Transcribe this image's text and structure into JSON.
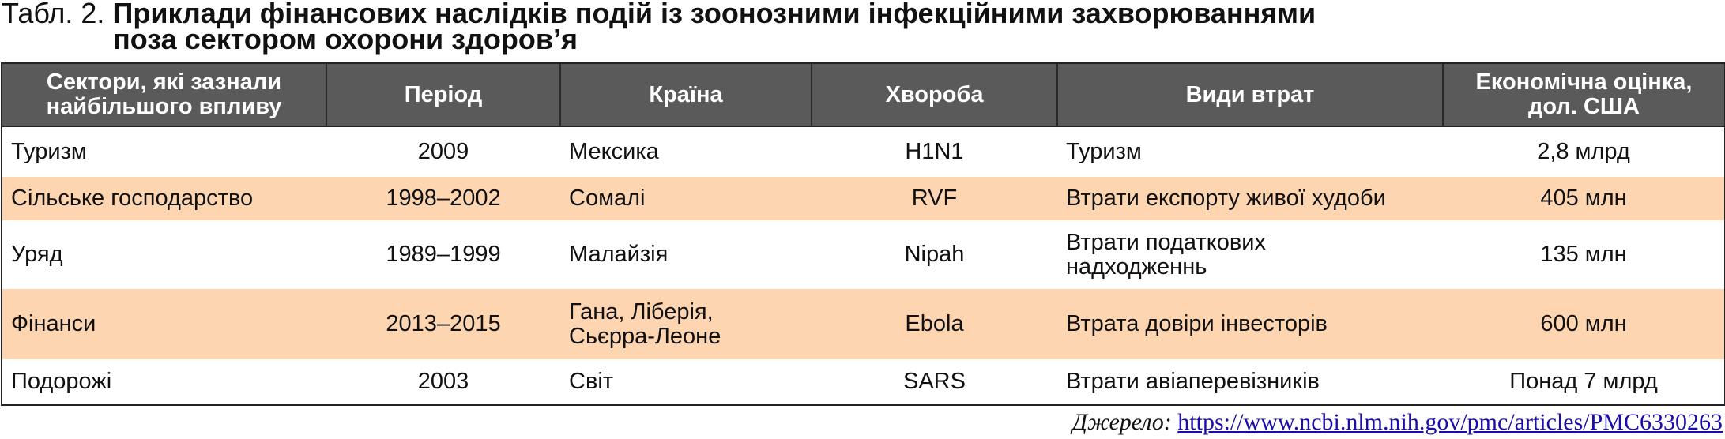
{
  "title": {
    "prefix": "Табл. 2.",
    "lines": [
      "Приклади фінансових наслідків подій із зоонозними інфекційними захворюваннями",
      "поза сектором охорони здоров’я"
    ]
  },
  "table": {
    "header": [
      [
        "Сектори, які зазнали",
        "найбільшого впливу"
      ],
      [
        "Період"
      ],
      [
        "Країна"
      ],
      [
        "Хвороба"
      ],
      [
        "Види втрат"
      ],
      [
        "Економічна оцінка,",
        "дол. США"
      ]
    ],
    "rows": [
      [
        [
          "Туризм"
        ],
        [
          "2009"
        ],
        [
          "Мексика"
        ],
        [
          "H1N1"
        ],
        [
          "Туризм"
        ],
        [
          "2,8 млрд"
        ]
      ],
      [
        [
          "Сільське господарство"
        ],
        [
          "1998–2002"
        ],
        [
          "Сомалі"
        ],
        [
          "RVF"
        ],
        [
          "Втрати експорту живої худоби"
        ],
        [
          "405 млн"
        ]
      ],
      [
        [
          "Уряд"
        ],
        [
          "1989–1999"
        ],
        [
          "Малайзія"
        ],
        [
          "Nipah"
        ],
        [
          "Втрати податкових",
          "надходженнь"
        ],
        [
          "135 млн"
        ]
      ],
      [
        [
          "Фінанси"
        ],
        [
          "2013–2015"
        ],
        [
          "Гана, Ліберія,",
          "Сьєрра-Леоне"
        ],
        [
          "Ebola"
        ],
        [
          "Втрата довіри інвесторів"
        ],
        [
          "600 млн"
        ]
      ],
      [
        [
          "Подорожі"
        ],
        [
          "2003"
        ],
        [
          "Світ"
        ],
        [
          "SARS"
        ],
        [
          "Втрати авіаперевізників"
        ],
        [
          "Понад 7 млрд"
        ]
      ]
    ]
  },
  "source": {
    "label": "Джерело:",
    "url": "https://www.ncbi.nlm.nih.gov/pmc/articles/PMC6330263"
  }
}
